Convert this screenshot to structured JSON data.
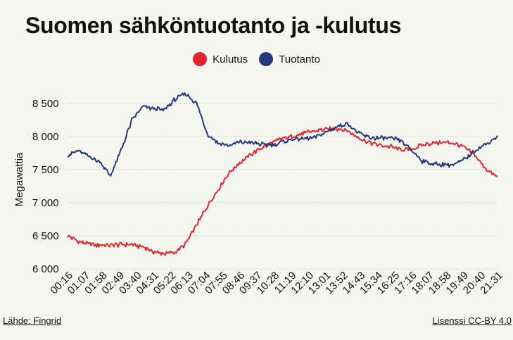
{
  "page": {
    "title": "Suomen sähköntuotanto ja -kulutus",
    "source": "Lähde: Fingrid",
    "license": "Lisenssi CC-BY 4.0"
  },
  "chart_data": {
    "type": "line",
    "title": "Suomen sähköntuotanto ja -kulutus",
    "ylabel": "Megawattia",
    "xlabel": "",
    "ylim": [
      6000,
      8700
    ],
    "yticks": [
      6000,
      6500,
      7000,
      7500,
      8000,
      8500
    ],
    "ytick_labels": [
      "6 000",
      "6 500",
      "7 000",
      "7 500",
      "8 000",
      "8 500"
    ],
    "grid": "horizontal",
    "legend_position": "top-center",
    "xtick_labels": [
      "00:16",
      "01:07",
      "01:58",
      "02:49",
      "03:40",
      "04:31",
      "05:22",
      "06:13",
      "07:04",
      "07:55",
      "08:46",
      "09:37",
      "10:28",
      "11:19",
      "12:10",
      "13:01",
      "13:52",
      "14:43",
      "15:34",
      "16:25",
      "17:16",
      "18:07",
      "18:58",
      "19:49",
      "20:40",
      "21:31"
    ],
    "series": [
      {
        "name": "Kulutus",
        "color": "#e0252d",
        "values": [
          6500,
          6420,
          6370,
          6360,
          6350,
          6370,
          6370,
          6330,
          6260,
          6230,
          6250,
          6380,
          6660,
          6950,
          7200,
          7450,
          7600,
          7720,
          7820,
          7900,
          7970,
          8000,
          8050,
          8080,
          8110,
          8120,
          8090,
          7990,
          7910,
          7870,
          7850,
          7800,
          7810,
          7870,
          7900,
          7910,
          7900,
          7820,
          7700,
          7490,
          7380
        ]
      },
      {
        "name": "Tuotanto",
        "color": "#243a7a",
        "values": [
          7720,
          7780,
          7700,
          7620,
          7400,
          7800,
          8250,
          8450,
          8420,
          8400,
          8560,
          8650,
          8500,
          8040,
          7900,
          7860,
          7910,
          7910,
          7880,
          7870,
          7920,
          7960,
          7960,
          7990,
          8060,
          8140,
          8200,
          8050,
          7990,
          7970,
          7970,
          7940,
          7790,
          7630,
          7580,
          7580,
          7570,
          7660,
          7800,
          7890,
          8000
        ]
      }
    ]
  }
}
